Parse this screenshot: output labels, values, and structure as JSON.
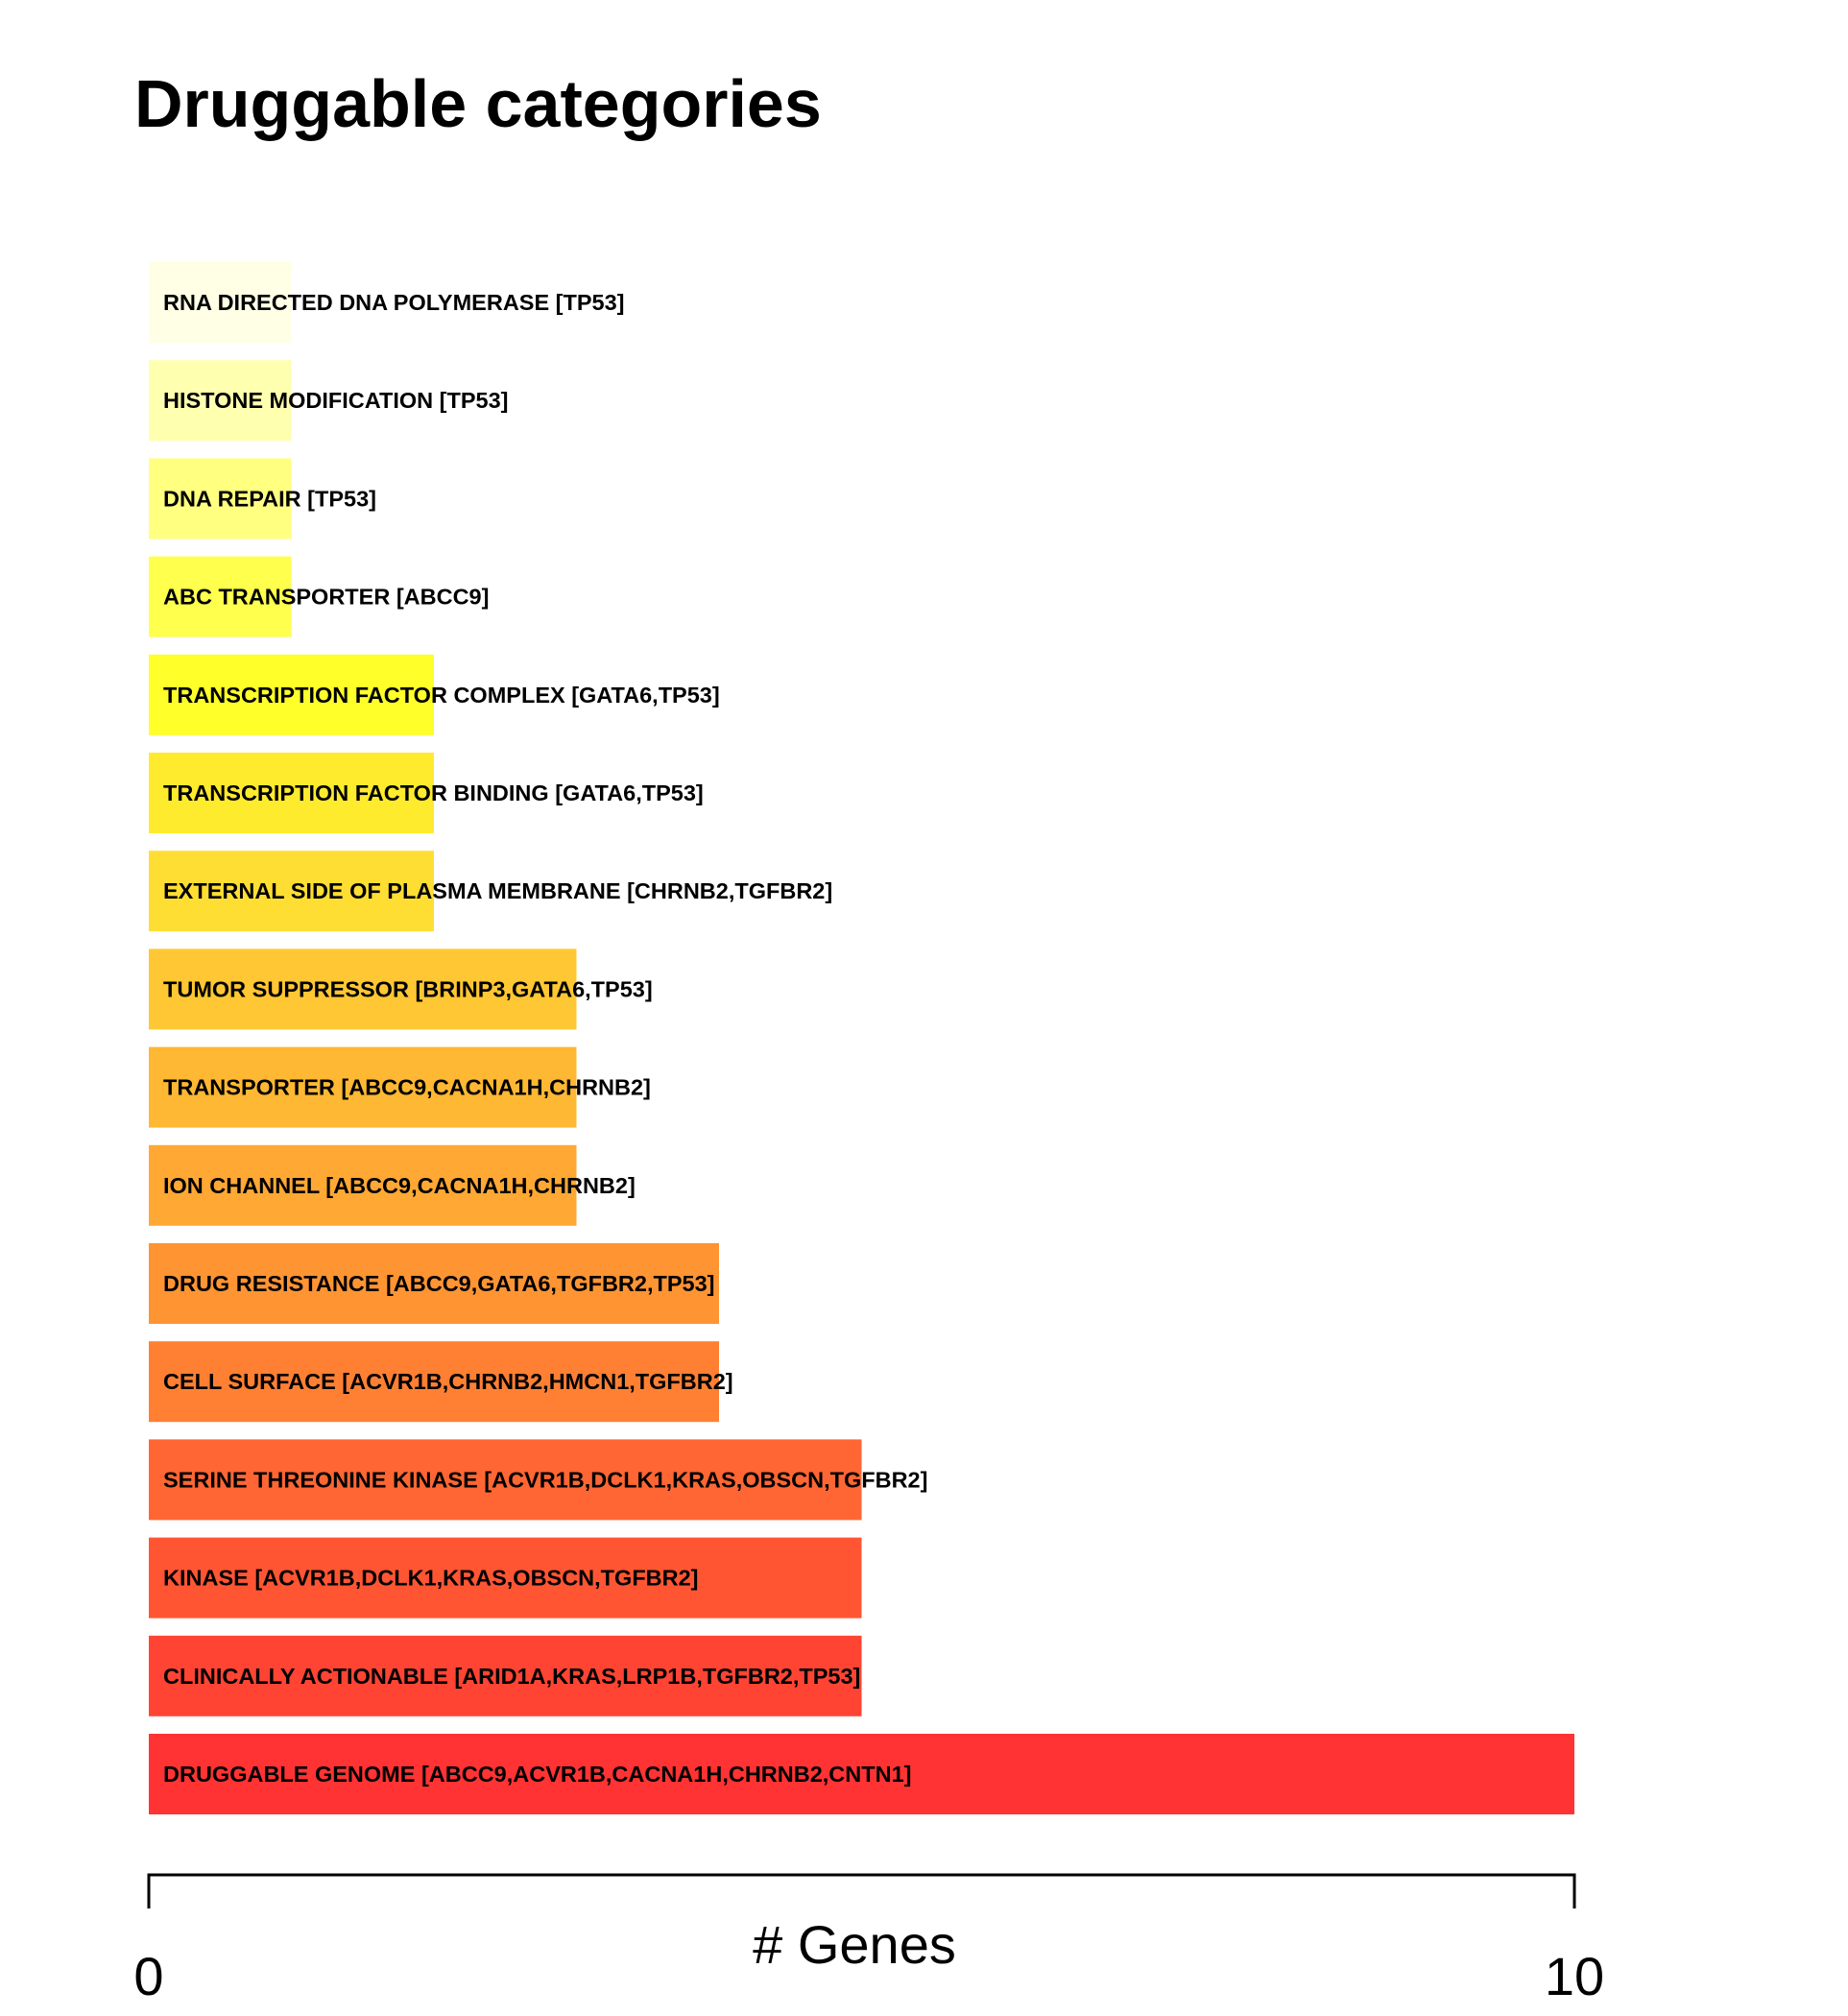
{
  "chart_data": {
    "type": "bar",
    "orientation": "horizontal",
    "title": "Druggable categories",
    "xlabel": "# Genes",
    "ylabel": "",
    "xlim": [
      0,
      10
    ],
    "x_ticks": [
      "0",
      "10"
    ],
    "grid": false,
    "legend": "none",
    "categories": [
      "RNA DIRECTED DNA POLYMERASE [TP53]",
      "HISTONE MODIFICATION [TP53]",
      "DNA REPAIR [TP53]",
      "ABC TRANSPORTER [ABCC9]",
      "TRANSCRIPTION FACTOR COMPLEX [GATA6,TP53]",
      "TRANSCRIPTION FACTOR BINDING [GATA6,TP53]",
      "EXTERNAL SIDE OF PLASMA MEMBRANE [CHRNB2,TGFBR2]",
      "TUMOR SUPPRESSOR [BRINP3,GATA6,TP53]",
      "TRANSPORTER [ABCC9,CACNA1H,CHRNB2]",
      "ION CHANNEL [ABCC9,CACNA1H,CHRNB2]",
      "DRUG RESISTANCE [ABCC9,GATA6,TGFBR2,TP53]",
      "CELL SURFACE [ACVR1B,CHRNB2,HMCN1,TGFBR2]",
      "SERINE THREONINE KINASE [ACVR1B,DCLK1,KRAS,OBSCN,TGFBR2]",
      "KINASE [ACVR1B,DCLK1,KRAS,OBSCN,TGFBR2]",
      "CLINICALLY ACTIONABLE [ARID1A,KRAS,LRP1B,TGFBR2,TP53]",
      "DRUGGABLE GENOME [ABCC9,ACVR1B,CACNA1H,CHRNB2,CNTN1]"
    ],
    "values": [
      1,
      1,
      1,
      1,
      2,
      2,
      2,
      3,
      3,
      3,
      4,
      4,
      5,
      5,
      5,
      10
    ],
    "colors": [
      "#FFFFE6",
      "#FFFFB0",
      "#FFFF80",
      "#FFFF4D",
      "#FFFF2A",
      "#FFEB2E",
      "#FFDE33",
      "#FFC733",
      "#FFB833",
      "#FFA833",
      "#FF9433",
      "#FF8033",
      "#FF6633",
      "#FF5533",
      "#FF4433",
      "#FF3333"
    ]
  }
}
